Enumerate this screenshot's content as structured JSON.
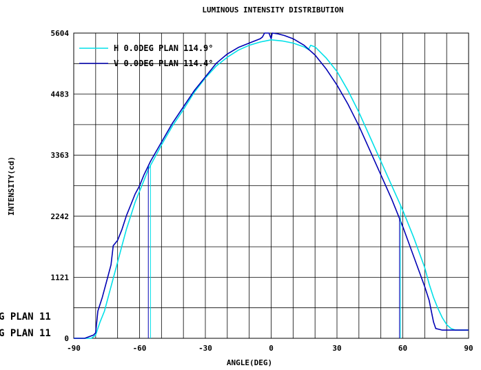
{
  "chart_data": {
    "type": "line",
    "title": "LUMINOUS INTENSITY DISTRIBUTION",
    "xlabel": "ANGLE(DEG)",
    "ylabel": "INTENSITY(cd)",
    "xlim": [
      -90,
      90
    ],
    "ylim": [
      0,
      5604
    ],
    "xticks": [
      -90,
      -60,
      -30,
      0,
      30,
      60,
      90
    ],
    "yticks": [
      0,
      1121,
      2242,
      3363,
      4483,
      5604
    ],
    "grid": true,
    "legend_position": "top-left",
    "overflow_labels": [
      "G PLAN 11",
      "G PLAN 11"
    ],
    "series": [
      {
        "name": "H 0.0DEG PLAN 114.9°",
        "color": "#00e0e8",
        "points": [
          [
            -90,
            0
          ],
          [
            -82,
            0
          ],
          [
            -80,
            60
          ],
          [
            -78,
            300
          ],
          [
            -76,
            500
          ],
          [
            -74,
            800
          ],
          [
            -72,
            1100
          ],
          [
            -70,
            1400
          ],
          [
            -68,
            1700
          ],
          [
            -66,
            2000
          ],
          [
            -64,
            2250
          ],
          [
            -62,
            2500
          ],
          [
            -60,
            2700
          ],
          [
            -58,
            2900
          ],
          [
            -56,
            3100
          ],
          [
            -54,
            3250
          ],
          [
            -52,
            3400
          ],
          [
            -50,
            3550
          ],
          [
            -45,
            3900
          ],
          [
            -40,
            4200
          ],
          [
            -35,
            4520
          ],
          [
            -30,
            4780
          ],
          [
            -25,
            5000
          ],
          [
            -20,
            5160
          ],
          [
            -15,
            5290
          ],
          [
            -10,
            5380
          ],
          [
            -5,
            5440
          ],
          [
            0,
            5480
          ],
          [
            5,
            5460
          ],
          [
            10,
            5420
          ],
          [
            15,
            5350
          ],
          [
            17,
            5300
          ],
          [
            18,
            5380
          ],
          [
            20,
            5350
          ],
          [
            25,
            5150
          ],
          [
            30,
            4900
          ],
          [
            35,
            4550
          ],
          [
            40,
            4150
          ],
          [
            45,
            3700
          ],
          [
            50,
            3250
          ],
          [
            55,
            2800
          ],
          [
            60,
            2350
          ],
          [
            65,
            1850
          ],
          [
            70,
            1300
          ],
          [
            72,
            1000
          ],
          [
            74,
            750
          ],
          [
            76,
            550
          ],
          [
            78,
            380
          ],
          [
            80,
            250
          ],
          [
            82,
            180
          ],
          [
            84,
            150
          ],
          [
            88,
            150
          ],
          [
            90,
            150
          ]
        ]
      },
      {
        "name": "V 0.0DEG PLAN 114.4°",
        "color": "#0000b4",
        "points": [
          [
            -90,
            0
          ],
          [
            -85,
            0
          ],
          [
            -81,
            60
          ],
          [
            -80,
            100
          ],
          [
            -79,
            500
          ],
          [
            -77,
            750
          ],
          [
            -75,
            1050
          ],
          [
            -73,
            1350
          ],
          [
            -72,
            1700
          ],
          [
            -70,
            1800
          ],
          [
            -68,
            2000
          ],
          [
            -66,
            2250
          ],
          [
            -64,
            2450
          ],
          [
            -62,
            2650
          ],
          [
            -60,
            2800
          ],
          [
            -58,
            3000
          ],
          [
            -55,
            3250
          ],
          [
            -50,
            3600
          ],
          [
            -45,
            3950
          ],
          [
            -40,
            4250
          ],
          [
            -35,
            4550
          ],
          [
            -30,
            4800
          ],
          [
            -25,
            5050
          ],
          [
            -20,
            5220
          ],
          [
            -15,
            5340
          ],
          [
            -10,
            5420
          ],
          [
            -5,
            5500
          ],
          [
            -4,
            5530
          ],
          [
            -3,
            5604
          ],
          [
            -1,
            5604
          ],
          [
            0,
            5500
          ],
          [
            0.5,
            5604
          ],
          [
            3,
            5590
          ],
          [
            6,
            5560
          ],
          [
            10,
            5500
          ],
          [
            15,
            5380
          ],
          [
            20,
            5200
          ],
          [
            25,
            4950
          ],
          [
            30,
            4650
          ],
          [
            35,
            4300
          ],
          [
            40,
            3900
          ],
          [
            45,
            3450
          ],
          [
            50,
            3000
          ],
          [
            55,
            2550
          ],
          [
            60,
            2050
          ],
          [
            65,
            1500
          ],
          [
            70,
            950
          ],
          [
            72,
            700
          ],
          [
            74,
            300
          ],
          [
            75,
            180
          ],
          [
            78,
            150
          ],
          [
            82,
            150
          ],
          [
            86,
            150
          ],
          [
            90,
            150
          ]
        ]
      }
    ],
    "vertical_markers": [
      {
        "series": 0,
        "x": -55
      },
      {
        "series": 1,
        "x": -56
      },
      {
        "series": 1,
        "x": 58.5
      },
      {
        "series": 0,
        "x": 59
      }
    ]
  }
}
